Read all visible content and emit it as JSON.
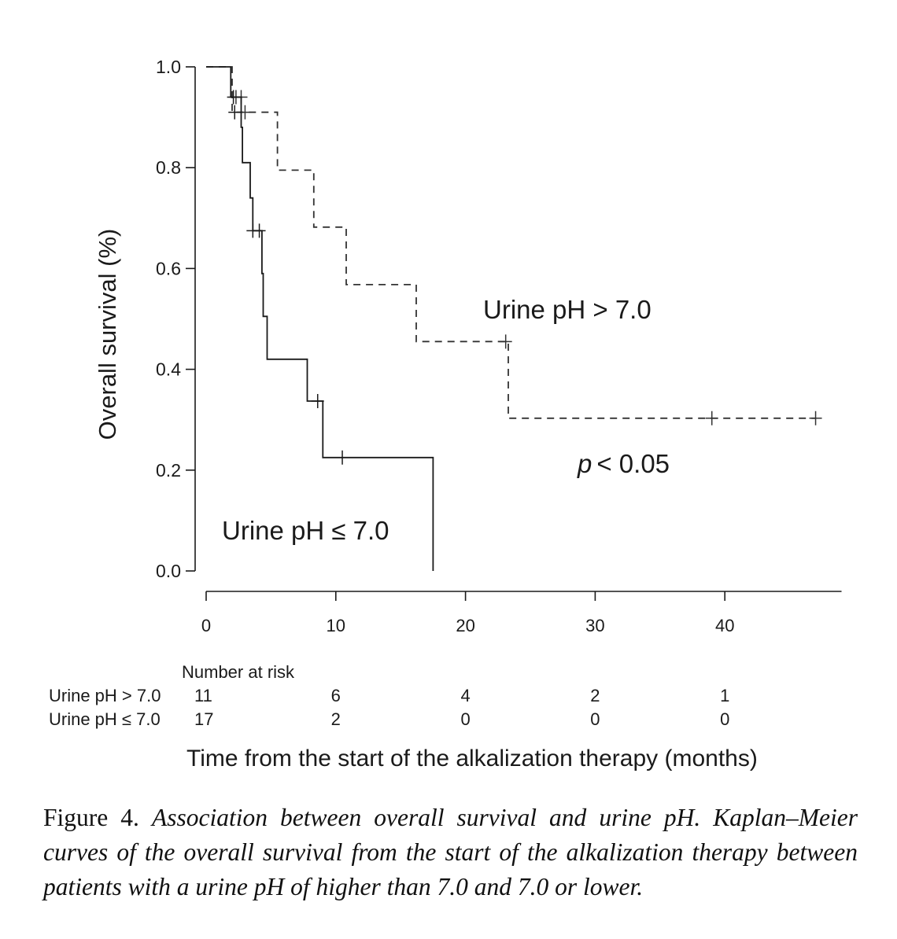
{
  "chart_data": {
    "type": "line",
    "ylabel": "Overall survival (%)",
    "xlabel": "Time from the start of the alkalization therapy (months)",
    "xlim": [
      0,
      49
    ],
    "ylim": [
      0.0,
      1.0
    ],
    "xticks": [
      "0",
      "10",
      "20",
      "30",
      "40"
    ],
    "xtick_values": [
      0,
      10,
      20,
      30,
      40
    ],
    "yticks": [
      "0.0",
      "0.2",
      "0.4",
      "0.6",
      "0.8",
      "1.0"
    ],
    "ytick_values": [
      0.0,
      0.2,
      0.4,
      0.6,
      0.8,
      1.0
    ],
    "grid": false,
    "annotation": "< 0.05",
    "annotation_italic": "p",
    "series": [
      {
        "name": "Urine pH > 7.0",
        "style": "dashed",
        "color": "#333333",
        "steps": [
          [
            0,
            1.0
          ],
          [
            2.0,
            1.0
          ],
          [
            2.0,
            0.91
          ],
          [
            5.5,
            0.91
          ],
          [
            5.5,
            0.795
          ],
          [
            8.3,
            0.795
          ],
          [
            8.3,
            0.682
          ],
          [
            10.8,
            0.682
          ],
          [
            10.8,
            0.568
          ],
          [
            16.2,
            0.568
          ],
          [
            16.2,
            0.455
          ],
          [
            23.3,
            0.455
          ],
          [
            23.3,
            0.303
          ],
          [
            47.0,
            0.303
          ]
        ],
        "censored": [
          [
            2.3,
            0.94
          ],
          [
            2.7,
            0.94
          ],
          [
            3.0,
            0.91
          ],
          [
            23.1,
            0.455
          ],
          [
            39.0,
            0.303
          ],
          [
            47.0,
            0.303
          ]
        ]
      },
      {
        "name": "Urine pH ≤ 7.0",
        "style": "solid",
        "color": "#1a1a1a",
        "steps": [
          [
            0,
            1.0
          ],
          [
            1.9,
            1.0
          ],
          [
            1.9,
            0.94
          ],
          [
            2.7,
            0.94
          ],
          [
            2.7,
            0.88
          ],
          [
            2.8,
            0.88
          ],
          [
            2.8,
            0.81
          ],
          [
            3.4,
            0.81
          ],
          [
            3.4,
            0.74
          ],
          [
            3.6,
            0.74
          ],
          [
            3.6,
            0.675
          ],
          [
            4.3,
            0.675
          ],
          [
            4.3,
            0.59
          ],
          [
            4.4,
            0.59
          ],
          [
            4.4,
            0.505
          ],
          [
            4.7,
            0.505
          ],
          [
            4.7,
            0.42
          ],
          [
            7.8,
            0.42
          ],
          [
            7.8,
            0.337
          ],
          [
            9.0,
            0.337
          ],
          [
            9.0,
            0.225
          ],
          [
            17.5,
            0.225
          ],
          [
            17.5,
            0.0
          ]
        ],
        "censored": [
          [
            2.1,
            0.94
          ],
          [
            2.2,
            0.91
          ],
          [
            3.6,
            0.675
          ],
          [
            4.1,
            0.675
          ],
          [
            8.6,
            0.337
          ],
          [
            10.5,
            0.225
          ]
        ]
      }
    ],
    "risk_table": {
      "title": "Number at risk",
      "time_points": [
        0,
        10,
        20,
        30,
        40
      ],
      "rows": [
        {
          "label": "Urine pH > 7.0",
          "counts": [
            "11",
            "6",
            "4",
            "2",
            "1"
          ]
        },
        {
          "label": "Urine pH ≤ 7.0",
          "counts": [
            "17",
            "2",
            "0",
            "0",
            "0"
          ]
        }
      ]
    }
  },
  "caption": {
    "label": "Figure 4.",
    "text": "Association between overall survival and urine pH. Kaplan–Meier curves of the overall survival from the start of the alkalization therapy between patients with a urine pH of higher than 7.0 and 7.0 or lower."
  }
}
